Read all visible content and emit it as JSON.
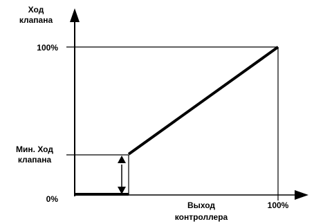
{
  "labels": {
    "y_axis_line1": "Ход",
    "y_axis_line2": "клапана",
    "y_100": "100%",
    "min_line1": "Мин. Ход",
    "min_line2": "клапана",
    "y_0": "0%",
    "x_axis_line1": "Выход",
    "x_axis_line2": "контроллера",
    "x_100": "100%"
  },
  "colors": {
    "line": "#000000",
    "background": "#ffffff"
  }
}
